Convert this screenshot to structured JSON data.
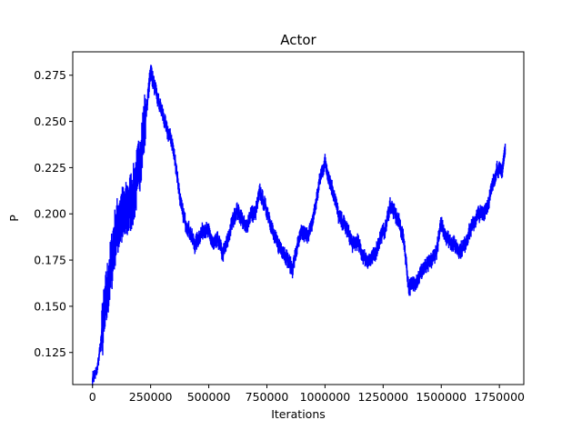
{
  "chart_data": {
    "type": "line",
    "title": "Actor",
    "xlabel": "Iterations",
    "ylabel": "P",
    "xlim": [
      -85000,
      1855000
    ],
    "ylim": [
      0.10766,
      0.28766
    ],
    "x_ticks": [
      0,
      250000,
      500000,
      750000,
      1000000,
      1250000,
      1500000,
      1750000
    ],
    "x_tick_labels": [
      "0",
      "250000",
      "500000",
      "750000",
      "1000000",
      "1250000",
      "1500000",
      "1750000"
    ],
    "y_ticks": [
      0.125,
      0.15,
      0.175,
      0.2,
      0.225,
      0.25,
      0.275
    ],
    "y_tick_labels": [
      "0.125",
      "0.150",
      "0.175",
      "0.200",
      "0.225",
      "0.250",
      "0.275"
    ],
    "grid": false,
    "line_color": "#0000ff",
    "series": [
      {
        "x": [
          0,
          20000,
          40000,
          60000,
          80000,
          100000,
          120000,
          140000,
          160000,
          180000,
          200000,
          220000,
          240000,
          250000,
          260000,
          280000,
          300000,
          320000,
          340000,
          360000,
          380000,
          400000,
          420000,
          440000,
          460000,
          480000,
          500000,
          520000,
          540000,
          560000,
          580000,
          600000,
          620000,
          640000,
          660000,
          680000,
          700000,
          720000,
          740000,
          760000,
          780000,
          800000,
          820000,
          840000,
          860000,
          880000,
          900000,
          920000,
          940000,
          960000,
          980000,
          1000000,
          1020000,
          1040000,
          1060000,
          1080000,
          1100000,
          1120000,
          1140000,
          1160000,
          1180000,
          1200000,
          1220000,
          1240000,
          1260000,
          1280000,
          1300000,
          1320000,
          1340000,
          1360000,
          1380000,
          1400000,
          1420000,
          1440000,
          1460000,
          1480000,
          1500000,
          1520000,
          1540000,
          1560000,
          1580000,
          1600000,
          1620000,
          1640000,
          1660000,
          1680000,
          1700000,
          1720000,
          1740000,
          1760000,
          1775000
        ],
        "y": [
          0.111,
          0.115,
          0.135,
          0.155,
          0.172,
          0.19,
          0.198,
          0.2,
          0.205,
          0.212,
          0.225,
          0.245,
          0.265,
          0.278,
          0.272,
          0.262,
          0.255,
          0.245,
          0.24,
          0.225,
          0.205,
          0.195,
          0.19,
          0.183,
          0.188,
          0.192,
          0.19,
          0.183,
          0.186,
          0.178,
          0.185,
          0.195,
          0.202,
          0.198,
          0.192,
          0.2,
          0.2,
          0.212,
          0.205,
          0.198,
          0.188,
          0.183,
          0.18,
          0.175,
          0.17,
          0.182,
          0.19,
          0.188,
          0.192,
          0.205,
          0.22,
          0.228,
          0.218,
          0.21,
          0.198,
          0.195,
          0.19,
          0.183,
          0.185,
          0.178,
          0.175,
          0.175,
          0.18,
          0.188,
          0.192,
          0.205,
          0.2,
          0.195,
          0.185,
          0.16,
          0.162,
          0.165,
          0.17,
          0.172,
          0.175,
          0.18,
          0.195,
          0.188,
          0.185,
          0.183,
          0.18,
          0.183,
          0.19,
          0.195,
          0.2,
          0.2,
          0.205,
          0.215,
          0.225,
          0.222,
          0.235
        ]
      }
    ]
  }
}
